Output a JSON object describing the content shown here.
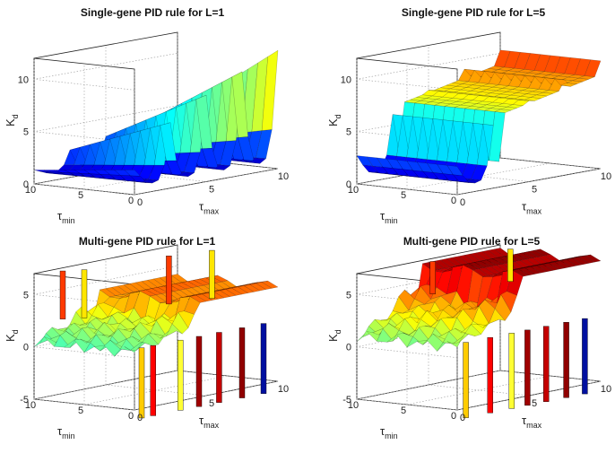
{
  "chart_data": [
    {
      "type": "surface",
      "title": "Single-gene PID rule for L=1",
      "xlabel": "τ_max",
      "ylabel": "τ_min",
      "zlabel": "K_d",
      "x_ticks": [
        "0",
        "5",
        "10"
      ],
      "y_ticks": [
        "0",
        "5",
        "10"
      ],
      "z_ticks": [
        "0",
        "5",
        "10"
      ],
      "xlim": [
        0,
        10
      ],
      "ylim": [
        0,
        10
      ],
      "zlim": [
        0,
        12
      ],
      "grid": true,
      "colormap": "jet",
      "surface": {
        "x": [
          0,
          0.5,
          1,
          1.5,
          2,
          2.5,
          3,
          3.5,
          4,
          4.5,
          5,
          5.5,
          6,
          6.5,
          7,
          7.5,
          8,
          8.5,
          9,
          9.5,
          10
        ],
        "y": [
          0,
          0.5,
          1,
          1.5,
          2,
          2.5,
          3,
          3.5,
          4,
          4.5,
          5,
          5.5,
          6,
          6.5,
          7,
          7.5,
          8,
          8.5,
          9,
          9.5,
          10
        ],
        "z_low": 0.8,
        "z_high": 11,
        "scallops_at_x": [
          0,
          2.5,
          5,
          7.5,
          10
        ]
      }
    },
    {
      "type": "surface",
      "title": "Single-gene PID rule for L=5",
      "xlabel": "τ_max",
      "ylabel": "τ_min",
      "zlabel": "K_d",
      "x_ticks": [
        "0",
        "5",
        "10"
      ],
      "y_ticks": [
        "0",
        "5",
        "10"
      ],
      "z_ticks": [
        "0",
        "5",
        "10"
      ],
      "xlim": [
        0,
        10
      ],
      "ylim": [
        0,
        10
      ],
      "zlim": [
        0,
        12
      ],
      "grid": true,
      "colormap": "jet",
      "surface": {
        "z_low": 0.8,
        "z_high": 11,
        "z_ridge": 8,
        "scallops_at_x": [
          0,
          2.5,
          5,
          7.5,
          10
        ]
      }
    },
    {
      "type": "surface",
      "title": "Multi-gene PID rule for L=1",
      "xlabel": "τ_max",
      "ylabel": "τ_min",
      "zlabel": "K_d",
      "x_ticks": [
        "0",
        "5",
        "10"
      ],
      "y_ticks": [
        "0",
        "5",
        "10"
      ],
      "z_ticks": [
        "-5",
        "0",
        "5"
      ],
      "xlim": [
        0,
        10
      ],
      "ylim": [
        0,
        10
      ],
      "zlim": [
        -5,
        7
      ],
      "grid": true,
      "colormap": "jet",
      "surface": {
        "z_plateau": 4,
        "z_floor": 0.5,
        "spikes_up_at_x": [
          1.3,
          2.1,
          7.3,
          9.6
        ],
        "spikes_down_at_x": [
          1.2,
          2.0,
          3.9,
          5.2,
          6.6,
          8.2,
          9.7
        ]
      }
    },
    {
      "type": "surface",
      "title": "Multi-gene PID rule for L=5",
      "xlabel": "τ_max",
      "ylabel": "τ_min",
      "zlabel": "K_d",
      "x_ticks": [
        "0",
        "5",
        "10"
      ],
      "y_ticks": [
        "0",
        "5",
        "10"
      ],
      "z_ticks": [
        "-5",
        "0",
        "5"
      ],
      "xlim": [
        0,
        10
      ],
      "ylim": [
        0,
        10
      ],
      "zlim": [
        -5,
        7
      ],
      "grid": true,
      "colormap": "jet",
      "surface": {
        "z_plateau": 6.5,
        "z_floor": 1,
        "spikes_up_at_x": [
          4.6,
          9.3
        ],
        "spikes_down_at_x": [
          1.3,
          3.0,
          4.5,
          5.6,
          6.9,
          8.3,
          9.6
        ]
      }
    }
  ],
  "colors": {
    "jet_low": "#00008f",
    "jet_mid": "#7fff7f",
    "jet_high": "#800000"
  }
}
